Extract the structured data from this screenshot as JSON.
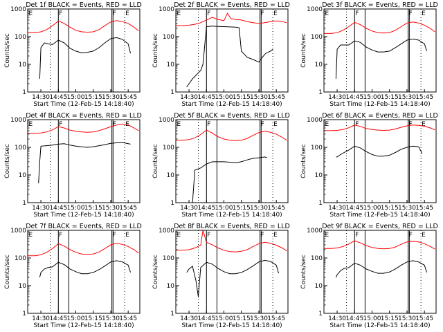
{
  "axes": {
    "ylabel": "Counts/sec",
    "xlabel": "Start Time (12-Feb-15 14:18:40)",
    "yticks": [
      "1",
      "10",
      "100",
      "1000"
    ],
    "xticks": [
      "14:30",
      "14:45",
      "15:00",
      "15:15",
      "15:30",
      "15:45"
    ]
  },
  "marker_labels": [
    "E",
    "F",
    "F",
    "E"
  ],
  "colors": {
    "events": "#000000",
    "lld": "#ff0000",
    "frame": "#000000"
  },
  "chart_data": [
    {
      "type": "line",
      "title": "Det 1f BLACK = Events, RED = LLD",
      "yscale": "log",
      "ylim": [
        1,
        1000
      ],
      "xlim": [
        "14:18:40",
        "15:55:00"
      ],
      "series": [
        {
          "color": "black",
          "x": [
            "14:29",
            "14:30",
            "14:33",
            "14:36",
            "14:40",
            "14:45",
            "14:50",
            "14:55",
            "15:00",
            "15:05",
            "15:10",
            "15:15",
            "15:20",
            "15:25",
            "15:30",
            "15:35",
            "15:40",
            "15:45",
            "15:47"
          ],
          "y": [
            3,
            40,
            60,
            55,
            52,
            75,
            60,
            38,
            30,
            26,
            27,
            30,
            40,
            60,
            85,
            92,
            80,
            55,
            25
          ]
        },
        {
          "color": "red",
          "x": [
            "14:19",
            "14:25",
            "14:30",
            "14:35",
            "14:40",
            "14:45",
            "14:50",
            "14:55",
            "15:00",
            "15:05",
            "15:10",
            "15:15",
            "15:20",
            "15:25",
            "15:30",
            "15:35",
            "15:40",
            "15:45",
            "15:50",
            "15:54"
          ],
          "y": [
            140,
            140,
            150,
            180,
            250,
            370,
            300,
            220,
            170,
            150,
            145,
            150,
            180,
            250,
            340,
            380,
            350,
            300,
            220,
            160
          ]
        }
      ]
    },
    {
      "type": "line",
      "title": "Det 2f BLACK = Events, RED = LLD",
      "yscale": "log",
      "ylim": [
        1,
        1000
      ],
      "xlim": [
        "14:18:40",
        "15:55:00"
      ],
      "series": [
        {
          "color": "black",
          "x": [
            "14:28",
            "14:30",
            "14:33",
            "14:36",
            "14:40",
            "14:42",
            "14:45",
            "14:50",
            "14:55",
            "15:00",
            "15:05",
            "15:10",
            "15:13",
            "15:15",
            "15:20",
            "15:25",
            "15:30",
            "15:33",
            "15:36",
            "15:40",
            "15:42"
          ],
          "y": [
            1.5,
            2,
            3,
            4,
            6,
            10,
            230,
            240,
            235,
            230,
            225,
            220,
            210,
            30,
            18,
            15,
            12,
            18,
            25,
            30,
            35
          ]
        },
        {
          "color": "red",
          "x": [
            "14:19",
            "14:25",
            "14:30",
            "14:35",
            "14:40",
            "14:45",
            "14:50",
            "14:55",
            "15:00",
            "15:03",
            "15:06",
            "15:10",
            "15:15",
            "15:20",
            "15:25",
            "15:30",
            "15:35",
            "15:40",
            "15:45",
            "15:50",
            "15:54"
          ],
          "y": [
            250,
            250,
            260,
            280,
            320,
            400,
            500,
            420,
            380,
            700,
            450,
            420,
            400,
            350,
            320,
            300,
            320,
            350,
            370,
            350,
            320
          ]
        }
      ]
    },
    {
      "type": "line",
      "title": "Det 3f BLACK = Events, RED = LLD",
      "yscale": "log",
      "ylim": [
        1,
        1000
      ],
      "xlim": [
        "14:18:40",
        "15:55:00"
      ],
      "series": [
        {
          "color": "black",
          "x": [
            "14:29",
            "14:30",
            "14:33",
            "14:36",
            "14:40",
            "14:45",
            "14:50",
            "14:55",
            "15:00",
            "15:05",
            "15:10",
            "15:15",
            "15:20",
            "15:25",
            "15:30",
            "15:35",
            "15:40",
            "15:45",
            "15:47"
          ],
          "y": [
            3,
            35,
            50,
            50,
            50,
            70,
            62,
            42,
            33,
            28,
            28,
            30,
            40,
            55,
            75,
            82,
            75,
            55,
            30
          ]
        },
        {
          "color": "red",
          "x": [
            "14:19",
            "14:25",
            "14:30",
            "14:35",
            "14:40",
            "14:45",
            "14:50",
            "14:55",
            "15:00",
            "15:05",
            "15:10",
            "15:15",
            "15:20",
            "15:25",
            "15:30",
            "15:35",
            "15:40",
            "15:45",
            "15:50",
            "15:54"
          ],
          "y": [
            130,
            130,
            140,
            170,
            230,
            330,
            270,
            200,
            160,
            140,
            135,
            140,
            170,
            230,
            310,
            340,
            310,
            260,
            200,
            150
          ]
        }
      ]
    },
    {
      "type": "line",
      "title": "Det 4f BLACK = Events, RED = LLD",
      "yscale": "log",
      "ylim": [
        1,
        1000
      ],
      "xlim": [
        "14:18:40",
        "15:55:00"
      ],
      "series": [
        {
          "color": "black",
          "x": [
            "14:28",
            "14:29",
            "14:30",
            "14:35",
            "14:40",
            "14:45",
            "14:50",
            "14:55",
            "15:00",
            "15:05",
            "15:10",
            "15:15",
            "15:20",
            "15:25",
            "15:30",
            "15:35",
            "15:40",
            "15:47"
          ],
          "y": [
            5,
            30,
            110,
            115,
            120,
            130,
            135,
            120,
            110,
            105,
            100,
            105,
            115,
            125,
            140,
            145,
            150,
            130
          ]
        },
        {
          "color": "red",
          "x": [
            "14:19",
            "14:25",
            "14:30",
            "14:35",
            "14:40",
            "14:45",
            "14:50",
            "14:55",
            "15:00",
            "15:05",
            "15:10",
            "15:15",
            "15:20",
            "15:25",
            "15:30",
            "15:35",
            "15:40",
            "15:45",
            "15:50",
            "15:54"
          ],
          "y": [
            320,
            320,
            330,
            360,
            430,
            560,
            500,
            420,
            380,
            360,
            350,
            360,
            400,
            470,
            560,
            640,
            700,
            650,
            500,
            400
          ]
        }
      ]
    },
    {
      "type": "line",
      "title": "Det 5f BLACK = Events, RED = LLD",
      "yscale": "log",
      "ylim": [
        1,
        1000
      ],
      "xlim": [
        "14:18:40",
        "15:55:00"
      ],
      "series": [
        {
          "color": "black",
          "x": [
            "14:28",
            "14:31",
            "14:33",
            "14:35",
            "14:40",
            "14:45",
            "14:50",
            "14:55",
            "15:00",
            "15:05",
            "15:10",
            "15:15",
            "15:20",
            "15:25",
            "15:30",
            "15:35",
            "15:37"
          ],
          "y": [
            1,
            1,
            1,
            15,
            18,
            25,
            30,
            30,
            30,
            29,
            28,
            30,
            35,
            40,
            42,
            45,
            42
          ]
        },
        {
          "color": "red",
          "x": [
            "14:19",
            "14:25",
            "14:30",
            "14:35",
            "14:40",
            "14:45",
            "14:50",
            "14:55",
            "15:00",
            "15:05",
            "15:10",
            "15:15",
            "15:20",
            "15:25",
            "15:30",
            "15:35",
            "15:40",
            "15:45",
            "15:50",
            "15:54"
          ],
          "y": [
            180,
            180,
            190,
            220,
            290,
            420,
            330,
            240,
            200,
            180,
            175,
            180,
            210,
            270,
            340,
            380,
            350,
            300,
            230,
            180
          ]
        }
      ]
    },
    {
      "type": "line",
      "title": "Det 6f BLACK = Events, RED = LLD",
      "yscale": "log",
      "ylim": [
        1,
        1000
      ],
      "xlim": [
        "14:18:40",
        "15:55:00"
      ],
      "series": [
        {
          "color": "black",
          "x": [
            "14:29",
            "14:30",
            "14:33",
            "14:36",
            "14:40",
            "14:45",
            "14:50",
            "14:55",
            "15:00",
            "15:05",
            "15:10",
            "15:15",
            "15:20",
            "15:25",
            "15:30",
            "15:35",
            "15:40",
            "15:43"
          ],
          "y": [
            45,
            45,
            55,
            65,
            80,
            110,
            95,
            70,
            55,
            48,
            48,
            52,
            65,
            85,
            100,
            110,
            105,
            60
          ]
        },
        {
          "color": "red",
          "x": [
            "14:19",
            "14:25",
            "14:30",
            "14:35",
            "14:40",
            "14:45",
            "14:50",
            "14:55",
            "15:00",
            "15:05",
            "15:10",
            "15:15",
            "15:20",
            "15:25",
            "15:30",
            "15:35",
            "15:40",
            "15:45",
            "15:50",
            "15:54"
          ],
          "y": [
            400,
            400,
            410,
            440,
            510,
            640,
            570,
            480,
            440,
            420,
            410,
            420,
            460,
            530,
            600,
            640,
            620,
            580,
            500,
            430
          ]
        }
      ]
    },
    {
      "type": "line",
      "title": "Det 7f BLACK = Events, RED = LLD",
      "yscale": "log",
      "ylim": [
        1,
        1000
      ],
      "xlim": [
        "14:18:40",
        "15:55:00"
      ],
      "series": [
        {
          "color": "black",
          "x": [
            "14:29",
            "14:30",
            "14:33",
            "14:36",
            "14:40",
            "14:45",
            "14:50",
            "14:55",
            "15:00",
            "15:05",
            "15:10",
            "15:15",
            "15:20",
            "15:25",
            "15:30",
            "15:35",
            "15:40",
            "15:45",
            "15:47"
          ],
          "y": [
            20,
            30,
            40,
            45,
            48,
            70,
            58,
            40,
            32,
            27,
            27,
            30,
            38,
            52,
            72,
            80,
            72,
            55,
            30
          ]
        },
        {
          "color": "red",
          "x": [
            "14:19",
            "14:25",
            "14:30",
            "14:35",
            "14:40",
            "14:45",
            "14:50",
            "14:55",
            "15:00",
            "15:05",
            "15:10",
            "15:15",
            "15:20",
            "15:25",
            "15:30",
            "15:35",
            "15:40",
            "15:45",
            "15:50",
            "15:54"
          ],
          "y": [
            120,
            120,
            130,
            160,
            220,
            330,
            270,
            200,
            160,
            140,
            135,
            140,
            165,
            220,
            300,
            340,
            310,
            260,
            200,
            150
          ]
        }
      ]
    },
    {
      "type": "line",
      "title": "Det 8f BLACK = Events, RED = LLD",
      "yscale": "log",
      "ylim": [
        1,
        1000
      ],
      "xlim": [
        "14:18:40",
        "15:55:00"
      ],
      "series": [
        {
          "color": "black",
          "x": [
            "14:28",
            "14:30",
            "14:33",
            "14:36",
            "14:38",
            "14:40",
            "14:45",
            "14:50",
            "14:55",
            "15:00",
            "15:05",
            "15:10",
            "15:15",
            "15:20",
            "15:25",
            "15:30",
            "15:35",
            "15:40",
            "15:45",
            "15:47"
          ],
          "y": [
            30,
            40,
            50,
            15,
            4,
            45,
            70,
            60,
            42,
            32,
            27,
            27,
            30,
            38,
            52,
            72,
            82,
            75,
            55,
            28
          ]
        },
        {
          "color": "red",
          "x": [
            "14:19",
            "14:25",
            "14:30",
            "14:35",
            "14:40",
            "14:42",
            "14:45",
            "14:50",
            "14:55",
            "15:00",
            "15:05",
            "15:10",
            "15:15",
            "15:20",
            "15:25",
            "15:30",
            "15:35",
            "15:40",
            "15:45",
            "15:50",
            "15:54"
          ],
          "y": [
            190,
            190,
            200,
            230,
            290,
            1000,
            370,
            300,
            230,
            190,
            170,
            165,
            175,
            200,
            260,
            330,
            370,
            340,
            290,
            230,
            180
          ]
        }
      ]
    },
    {
      "type": "line",
      "title": "Det 9f BLACK = Events, RED = LLD",
      "yscale": "log",
      "ylim": [
        1,
        1000
      ],
      "xlim": [
        "14:18:40",
        "15:55:00"
      ],
      "series": [
        {
          "color": "black",
          "x": [
            "14:29",
            "14:30",
            "14:33",
            "14:36",
            "14:40",
            "14:45",
            "14:50",
            "14:55",
            "15:00",
            "15:05",
            "15:10",
            "15:15",
            "15:20",
            "15:25",
            "15:30",
            "15:35",
            "15:40",
            "15:45",
            "15:47"
          ],
          "y": [
            20,
            25,
            35,
            42,
            45,
            65,
            55,
            40,
            33,
            28,
            28,
            31,
            40,
            55,
            72,
            80,
            72,
            55,
            30
          ]
        },
        {
          "color": "red",
          "x": [
            "14:19",
            "14:25",
            "14:30",
            "14:35",
            "14:40",
            "14:45",
            "14:50",
            "14:55",
            "15:00",
            "15:05",
            "15:10",
            "15:15",
            "15:20",
            "15:25",
            "15:30",
            "15:35",
            "15:40",
            "15:45",
            "15:50",
            "15:54"
          ],
          "y": [
            220,
            220,
            230,
            260,
            320,
            420,
            350,
            280,
            240,
            220,
            215,
            220,
            250,
            310,
            380,
            400,
            380,
            330,
            260,
            210
          ]
        }
      ]
    }
  ],
  "markers": {
    "solid_times": [
      "14:45",
      "14:54",
      "15:31",
      "15:32"
    ],
    "dotted_times": [
      "14:38",
      "15:42"
    ],
    "label_times": [
      "14:19",
      "14:45",
      "15:31",
      "15:42"
    ]
  }
}
